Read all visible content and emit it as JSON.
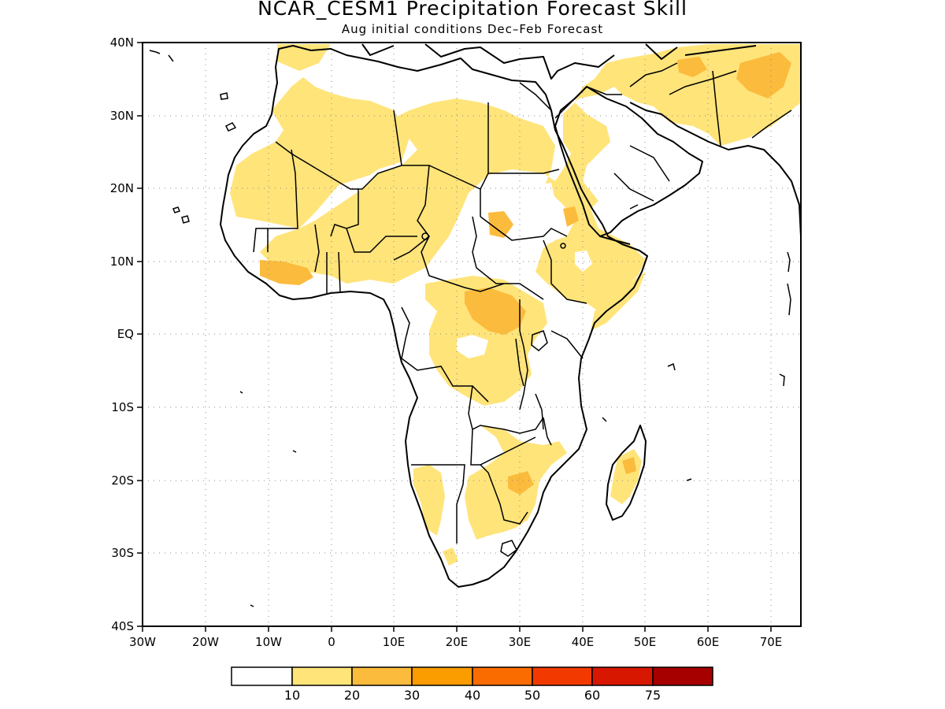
{
  "title": "NCAR_CESM1 Precipitation Forecast Skill",
  "subtitle": "Aug initial conditions  Dec–Feb Forecast",
  "map": {
    "lon_range": [
      -30,
      75
    ],
    "lat_range": [
      -40,
      40
    ],
    "lon_ticks": [
      "30W",
      "20W",
      "10W",
      "0",
      "10E",
      "20E",
      "30E",
      "40E",
      "50E",
      "60E",
      "70E"
    ],
    "lat_ticks": [
      "40N",
      "30N",
      "20N",
      "10N",
      "EQ",
      "10S",
      "20S",
      "30S",
      "40S"
    ],
    "grid": "dotted"
  },
  "legend": {
    "colors": [
      "#ffffff",
      "#ffe47a",
      "#fbbb3c",
      "#fb9c00",
      "#fb6c00",
      "#f23a00",
      "#d81700",
      "#a60000"
    ],
    "labels": [
      "10",
      "20",
      "30",
      "40",
      "50",
      "60",
      "75"
    ]
  }
}
